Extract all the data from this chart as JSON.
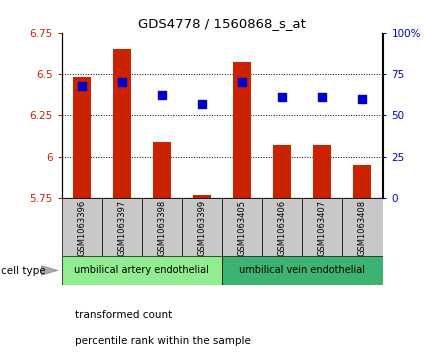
{
  "title": "GDS4778 / 1560868_s_at",
  "samples": [
    "GSM1063396",
    "GSM1063397",
    "GSM1063398",
    "GSM1063399",
    "GSM1063405",
    "GSM1063406",
    "GSM1063407",
    "GSM1063408"
  ],
  "red_values": [
    6.48,
    6.65,
    6.09,
    5.77,
    6.57,
    6.07,
    6.07,
    5.95
  ],
  "blue_values": [
    6.43,
    6.45,
    6.37,
    6.32,
    6.45,
    6.36,
    6.36,
    6.35
  ],
  "ylim_left": [
    5.75,
    6.75
  ],
  "ylim_right": [
    0,
    100
  ],
  "yticks_left": [
    5.75,
    6.0,
    6.25,
    6.5,
    6.75
  ],
  "yticks_right": [
    0,
    25,
    50,
    75,
    100
  ],
  "ytick_labels_left": [
    "5.75",
    "6",
    "6.25",
    "6.5",
    "6.75"
  ],
  "ytick_labels_right": [
    "0",
    "25",
    "50",
    "75",
    "100%"
  ],
  "cell_type_groups": [
    {
      "label": "umbilical artery endothelial",
      "indices": [
        0,
        1,
        2,
        3
      ],
      "color": "#90ee90"
    },
    {
      "label": "umbilical vein endothelial",
      "indices": [
        4,
        5,
        6,
        7
      ],
      "color": "#3cb371"
    }
  ],
  "cell_type_label": "cell type",
  "legend_red_label": "transformed count",
  "legend_blue_label": "percentile rank within the sample",
  "bar_color": "#cc2200",
  "dot_color": "#0000cc",
  "bar_baseline": 5.75,
  "bar_width": 0.45,
  "dot_size": 40,
  "grid_ticks": [
    6.0,
    6.25,
    6.5
  ],
  "tick_color_left": "#cc2200",
  "tick_color_right": "#0000cc",
  "sample_bg_color": "#c8c8c8"
}
